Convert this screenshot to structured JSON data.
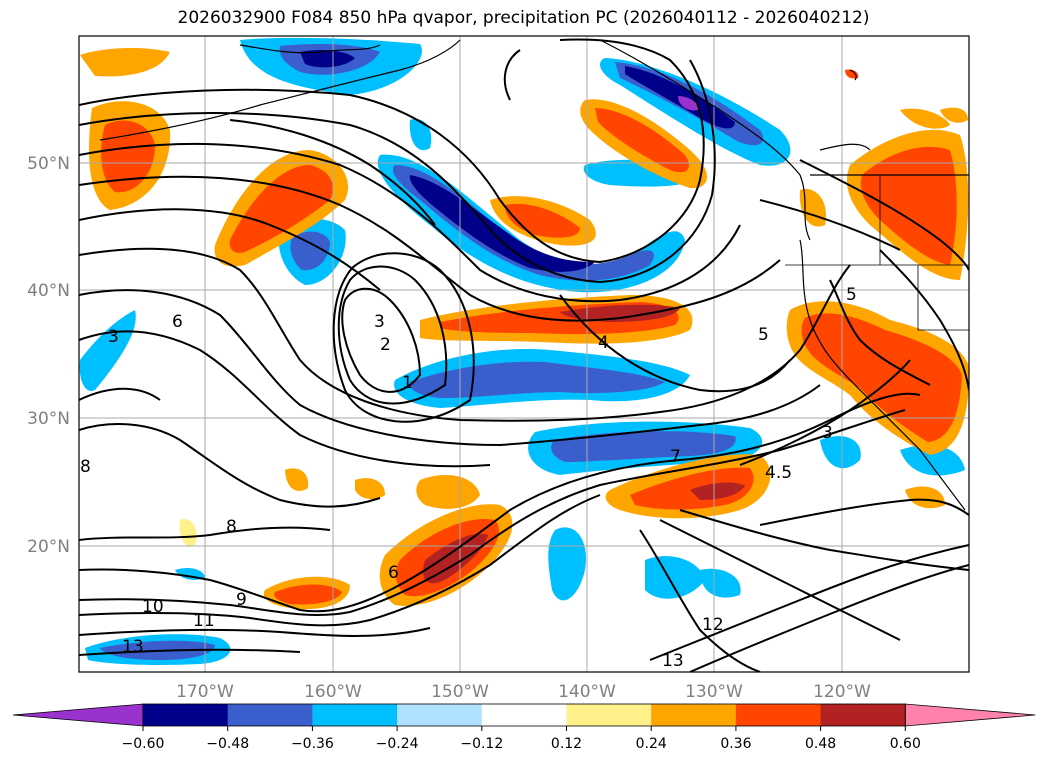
{
  "title": "2026032900 F084 850 hPa qvapor, precipitation PC (2026040112 - 2026040212)",
  "map": {
    "lat_labels": [
      "50°N",
      "40°N",
      "30°N",
      "20°N"
    ],
    "lon_labels": [
      "170°W",
      "160°W",
      "150°W",
      "140°W",
      "130°W",
      "120°W"
    ],
    "contour_labels": [
      "3",
      "6",
      "2",
      "3",
      "1",
      "4",
      "5",
      "5",
      "7",
      "3",
      "4.5",
      "8",
      "9",
      "10",
      "11",
      "6",
      "12",
      "13",
      "13",
      "8"
    ]
  },
  "colorbar": {
    "ticks": [
      "−0.60",
      "−0.48",
      "−0.36",
      "−0.24",
      "−0.12",
      "0.12",
      "0.24",
      "0.36",
      "0.48",
      "0.60"
    ],
    "colors": [
      "#9a32cd",
      "#00008b",
      "#3a5fcd",
      "#00bfff",
      "#b0e2ff",
      "#ffffff",
      "#fff08a",
      "#ffa500",
      "#ff4500",
      "#b22222",
      "#ff82ab"
    ]
  }
}
